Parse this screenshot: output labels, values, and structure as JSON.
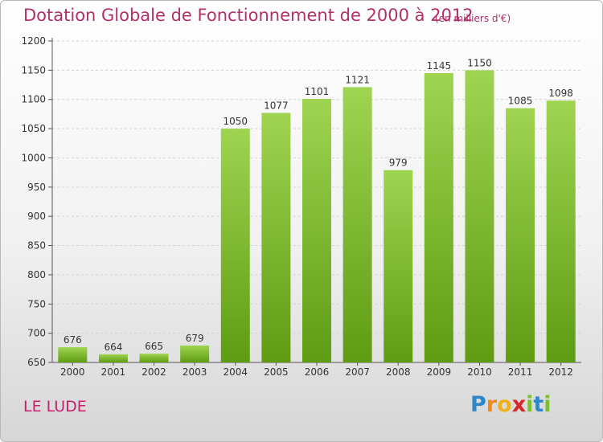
{
  "chart_data": {
    "type": "bar",
    "title": "Dotation Globale de Fonctionnement de 2000 à 2012",
    "subtitle": "(en milliers d'€)",
    "categories": [
      "2000",
      "2001",
      "2002",
      "2003",
      "2004",
      "2005",
      "2006",
      "2007",
      "2008",
      "2009",
      "2010",
      "2011",
      "2012"
    ],
    "values": [
      676,
      664,
      665,
      679,
      1050,
      1077,
      1101,
      1121,
      979,
      1145,
      1150,
      1085,
      1098
    ],
    "ylim": [
      650,
      1200
    ],
    "yticks": [
      650,
      700,
      750,
      800,
      850,
      900,
      950,
      1000,
      1050,
      1100,
      1150,
      1200
    ],
    "xlabel": "",
    "ylabel": "",
    "grid": true,
    "legend": "none",
    "bar_color": "#7dbf2e"
  },
  "footer": {
    "place": "LE LUDE",
    "brand_letters": [
      {
        "ch": "P",
        "color": "#2f86c8"
      },
      {
        "ch": "r",
        "color": "#f08a1c"
      },
      {
        "ch": "o",
        "color": "#f0b21c"
      },
      {
        "ch": "x",
        "color": "#d6262a"
      },
      {
        "ch": "i",
        "color": "#7dbf2e"
      },
      {
        "ch": "t",
        "color": "#2f86c8"
      },
      {
        "ch": "i",
        "color": "#7dbf2e"
      }
    ]
  }
}
